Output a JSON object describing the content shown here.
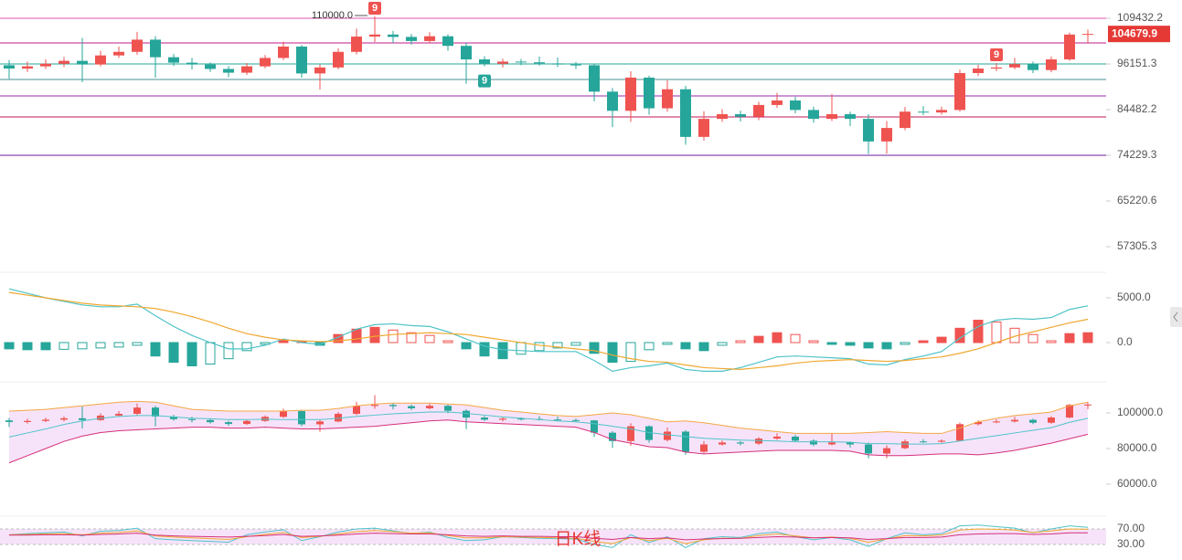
{
  "chart_data": [
    {
      "type": "candlestick",
      "candles": [
        [
          95800,
          97200,
          92200,
          94900
        ],
        [
          94900,
          96800,
          94000,
          95500
        ],
        [
          95500,
          97400,
          94800,
          96200
        ],
        [
          96200,
          98100,
          95300,
          97000
        ],
        [
          97000,
          103500,
          91300,
          96000
        ],
        [
          96000,
          99800,
          95500,
          98500
        ],
        [
          98500,
          101000,
          97800,
          99500
        ],
        [
          99500,
          105300,
          98700,
          103000
        ],
        [
          103000,
          104000,
          92500,
          98000
        ],
        [
          98000,
          98900,
          95600,
          96500
        ],
        [
          96500,
          97800,
          94700,
          96000
        ],
        [
          96000,
          96600,
          94000,
          94800
        ],
        [
          94800,
          95600,
          92600,
          93800
        ],
        [
          93800,
          96400,
          93200,
          95500
        ],
        [
          95500,
          98600,
          95000,
          97800
        ],
        [
          97800,
          102400,
          97200,
          101000
        ],
        [
          101000,
          101500,
          92500,
          93600
        ],
        [
          93600,
          96000,
          89400,
          95200
        ],
        [
          95200,
          100500,
          94700,
          99500
        ],
        [
          99500,
          106300,
          98800,
          103900
        ],
        [
          103900,
          110000,
          102300,
          104500
        ],
        [
          104500,
          105600,
          102000,
          103800
        ],
        [
          103800,
          104700,
          101600,
          102600
        ],
        [
          102600,
          105200,
          102000,
          104000
        ],
        [
          104000,
          104600,
          99800,
          101200
        ],
        [
          101200,
          102000,
          90900,
          97400
        ],
        [
          97400,
          98300,
          95500,
          96200
        ],
        [
          96200,
          97600,
          95200,
          96800
        ],
        [
          96800,
          97500,
          95800,
          96600
        ],
        [
          96600,
          98200,
          95700,
          96300
        ],
        [
          96300,
          97900,
          95300,
          96000
        ],
        [
          96000,
          96700,
          94800,
          95800
        ],
        [
          95800,
          96100,
          86500,
          88900
        ],
        [
          88900,
          89800,
          80400,
          84200
        ],
        [
          84200,
          94200,
          81600,
          92500
        ],
        [
          92500,
          93000,
          83300,
          84800
        ],
        [
          84800,
          91800,
          84000,
          89500
        ],
        [
          89500,
          90400,
          76500,
          78200
        ],
        [
          78200,
          84100,
          77400,
          82300
        ],
        [
          82300,
          84600,
          81600,
          83400
        ],
        [
          83400,
          84200,
          81700,
          82800
        ],
        [
          82800,
          86400,
          82000,
          85600
        ],
        [
          85600,
          88600,
          84900,
          86700
        ],
        [
          86700,
          87600,
          83600,
          84400
        ],
        [
          84400,
          85200,
          81400,
          82300
        ],
        [
          82300,
          88300,
          81800,
          83400
        ],
        [
          83400,
          84000,
          80600,
          82300
        ],
        [
          82300,
          83400,
          74500,
          77200
        ],
        [
          77200,
          81800,
          74600,
          80200
        ],
        [
          80200,
          85100,
          79700,
          84000
        ],
        [
          84000,
          85300,
          83200,
          83800
        ],
        [
          83800,
          85200,
          83300,
          84400
        ],
        [
          84400,
          94600,
          84000,
          93700
        ],
        [
          93700,
          95900,
          92900,
          94900
        ],
        [
          94900,
          96400,
          94200,
          95200
        ],
        [
          95200,
          97800,
          94700,
          96100
        ],
        [
          96100,
          96800,
          93700,
          94500
        ],
        [
          94500,
          98200,
          93900,
          97400
        ],
        [
          97400,
          105100,
          97000,
          104500
        ],
        [
          104500,
          106000,
          102100,
          104679.9
        ]
      ],
      "log": true,
      "ylim": [
        54416,
        115244
      ],
      "yticks": [
        109432.2,
        96151.3,
        84482.2,
        74229.3,
        65220.6,
        57305.3
      ],
      "up_color": "#ef5350",
      "down_color": "#26a69a",
      "levels": [
        {
          "value": 109432.2,
          "color": "#e255b0"
        },
        {
          "value": 102053,
          "color": "#c2188c"
        },
        {
          "value": 96151.3,
          "color": "#26a69a"
        },
        {
          "value": 92020,
          "color": "#4a8f94"
        },
        {
          "value": 87840,
          "color": "#9c27b0"
        },
        {
          "value": 82764,
          "color": "#c2185b"
        },
        {
          "value": 74229.3,
          "color": "#6a1b9a"
        }
      ],
      "max_annotation": {
        "value": 110000,
        "label": "110000.0"
      },
      "td_sell": [
        null,
        null,
        null,
        null,
        null,
        null,
        null,
        null,
        null,
        null,
        null,
        null,
        null,
        null,
        null,
        null,
        null,
        null,
        null,
        null,
        "9",
        null,
        null,
        null,
        null,
        null,
        null,
        null,
        null,
        null,
        null,
        null,
        null,
        null,
        null,
        null,
        null,
        null,
        null,
        null,
        null,
        null,
        null,
        null,
        null,
        null,
        null,
        null,
        null,
        null,
        null,
        null,
        null,
        null,
        "9",
        null,
        null,
        null,
        null,
        null
      ],
      "td_buy": [
        null,
        null,
        null,
        null,
        null,
        null,
        null,
        null,
        null,
        null,
        null,
        null,
        null,
        null,
        null,
        null,
        null,
        null,
        null,
        null,
        null,
        null,
        null,
        null,
        null,
        null,
        "9",
        null,
        null,
        null,
        null,
        null,
        null,
        null,
        null,
        null,
        null,
        null,
        null,
        null,
        null,
        null,
        null,
        null,
        null,
        null,
        null,
        null,
        null,
        null,
        null,
        null,
        null,
        null,
        null,
        null,
        null,
        null,
        null,
        null
      ]
    },
    {
      "type": "macd",
      "hist": [
        -700,
        -800,
        -800,
        -750,
        -700,
        -600,
        -500,
        -300,
        -1500,
        -2200,
        -2600,
        -2400,
        -1800,
        -900,
        -200,
        300,
        100,
        -300,
        900,
        1500,
        1700,
        1400,
        1100,
        800,
        200,
        -700,
        -1500,
        -1800,
        -1300,
        -900,
        -600,
        -300,
        -1200,
        -2200,
        -2100,
        -800,
        -200,
        -700,
        -900,
        -300,
        200,
        700,
        1100,
        900,
        200,
        -200,
        -300,
        -600,
        -700,
        -200,
        200,
        600,
        1600,
        2500,
        2300,
        1600,
        900,
        200,
        1000,
        1100
      ],
      "dif": [
        6000,
        5500,
        5000,
        4600,
        4200,
        4000,
        4000,
        4300,
        3000,
        1800,
        800,
        0,
        -700,
        -700,
        -300,
        400,
        0,
        -200,
        600,
        1500,
        2000,
        2100,
        1900,
        1800,
        1200,
        400,
        -400,
        -800,
        -900,
        -1000,
        -1000,
        -1000,
        -2000,
        -3200,
        -2800,
        -2600,
        -2300,
        -3000,
        -3200,
        -3200,
        -2800,
        -2200,
        -1600,
        -1500,
        -1600,
        -1700,
        -1800,
        -2400,
        -2500,
        -1900,
        -1500,
        -1000,
        500,
        1800,
        2500,
        2700,
        2600,
        2800,
        3700,
        4100
      ],
      "dea": [
        5600,
        5300,
        5000,
        4700,
        4400,
        4200,
        4100,
        4000,
        3800,
        3400,
        2900,
        2300,
        1600,
        1000,
        600,
        300,
        200,
        100,
        200,
        400,
        700,
        900,
        1000,
        1100,
        1000,
        900,
        600,
        300,
        0,
        -300,
        -500,
        -700,
        -900,
        -1400,
        -1800,
        -2100,
        -2200,
        -2500,
        -2800,
        -2900,
        -3000,
        -2800,
        -2600,
        -2300,
        -2100,
        -2000,
        -1900,
        -2000,
        -2100,
        -2000,
        -1800,
        -1600,
        -1200,
        -700,
        0,
        700,
        1200,
        1700,
        2200,
        2600
      ],
      "ylim": [
        -4082,
        7143
      ],
      "yticks": [
        {
          "value": 5000,
          "label": "5000.0"
        },
        {
          "value": 0,
          "label": "0.0"
        }
      ],
      "up_color": "#ef5350",
      "down_color": "#26a69a",
      "dif_color": "#4fc3c8",
      "dea_color": "#f0a830"
    },
    {
      "type": "boll",
      "upper": [
        101000,
        101500,
        102000,
        103000,
        104000,
        105000,
        106000,
        106500,
        106000,
        104000,
        102000,
        101500,
        101000,
        101000,
        101000,
        101000,
        101500,
        101500,
        102500,
        104000,
        105000,
        105500,
        105500,
        105500,
        105000,
        104500,
        103000,
        101500,
        100500,
        99500,
        98500,
        98000,
        99000,
        100000,
        99000,
        97000,
        95000,
        95500,
        94500,
        93000,
        91500,
        90500,
        89500,
        88500,
        88500,
        88500,
        88500,
        89000,
        89500,
        89000,
        88500,
        88500,
        91500,
        95000,
        97000,
        98500,
        99500,
        100500,
        104000,
        106000
      ],
      "mid": [
        86500,
        88750,
        91000,
        93500,
        95500,
        97000,
        98000,
        98500,
        98500,
        97750,
        97000,
        96750,
        96250,
        96250,
        96500,
        96250,
        96250,
        96250,
        97000,
        98000,
        98750,
        99500,
        100000,
        100500,
        100500,
        99750,
        98750,
        97750,
        97000,
        96250,
        95500,
        95000,
        94000,
        92500,
        91000,
        89000,
        87750,
        86750,
        85750,
        85250,
        84750,
        84500,
        84250,
        83750,
        83750,
        83750,
        83500,
        82750,
        82750,
        82500,
        82500,
        82750,
        84250,
        85750,
        87250,
        88750,
        90250,
        91750,
        94750,
        97000
      ],
      "lower": [
        72000,
        76000,
        80000,
        84000,
        87000,
        89000,
        90000,
        90500,
        91000,
        91500,
        92000,
        92000,
        91500,
        91500,
        92000,
        91500,
        91000,
        91000,
        91500,
        92000,
        92500,
        93500,
        94500,
        95500,
        96000,
        95000,
        94500,
        94000,
        93500,
        93000,
        92500,
        92000,
        89000,
        85000,
        83000,
        81000,
        80500,
        78000,
        77000,
        77500,
        78000,
        78500,
        79000,
        79000,
        79000,
        79000,
        78500,
        76500,
        76000,
        76000,
        76500,
        77000,
        77000,
        76500,
        77500,
        79000,
        81000,
        83000,
        85500,
        88000
      ],
      "ylim": [
        44615,
        108718
      ],
      "yticks": [
        {
          "value": 100000,
          "label": "100000.0"
        },
        {
          "value": 80000,
          "label": "80000.0"
        },
        {
          "value": 60000,
          "label": "60000.0"
        }
      ],
      "upper_color": "#f5a742",
      "mid_color": "#4fc3c8",
      "lower_color": "#d6307a",
      "fill": "#f6e3fa"
    },
    {
      "type": "rsi",
      "lines": [
        {
          "color": "#4fc3c8",
          "values": [
            55,
            58,
            60,
            62,
            52,
            64,
            66,
            72,
            45,
            42,
            40,
            38,
            36,
            55,
            62,
            68,
            40,
            50,
            62,
            70,
            72,
            65,
            58,
            62,
            48,
            40,
            42,
            50,
            48,
            46,
            45,
            44,
            30,
            22,
            55,
            35,
            50,
            22,
            45,
            50,
            48,
            58,
            62,
            50,
            42,
            48,
            42,
            25,
            45,
            60,
            55,
            58,
            78,
            80,
            76,
            72,
            60,
            70,
            78,
            74
          ]
        },
        {
          "color": "#f0a830",
          "values": [
            55,
            56,
            57,
            58,
            55,
            59,
            61,
            65,
            52,
            49,
            47,
            45,
            43,
            50,
            56,
            61,
            48,
            51,
            57,
            63,
            66,
            63,
            59,
            60,
            53,
            47,
            47,
            50,
            49,
            48,
            47,
            46,
            38,
            32,
            48,
            40,
            46,
            32,
            42,
            46,
            46,
            53,
            57,
            52,
            47,
            49,
            46,
            36,
            44,
            53,
            52,
            54,
            67,
            70,
            69,
            67,
            61,
            65,
            70,
            69
          ]
        },
        {
          "color": "#d6307a",
          "values": [
            54,
            54,
            55,
            55,
            54,
            56,
            57,
            59,
            54,
            52,
            51,
            50,
            49,
            51,
            53,
            56,
            51,
            52,
            54,
            57,
            59,
            58,
            57,
            57,
            55,
            52,
            51,
            52,
            51,
            51,
            50,
            50,
            46,
            43,
            48,
            45,
            47,
            42,
            44,
            45,
            46,
            48,
            50,
            49,
            47,
            48,
            47,
            43,
            45,
            48,
            48,
            49,
            55,
            57,
            58,
            58,
            56,
            57,
            60,
            60
          ]
        }
      ],
      "ylim": [
        8.8,
        91.2
      ],
      "yticks": [
        {
          "value": 70,
          "label": "70.00"
        },
        {
          "value": 30,
          "label": "30.00"
        }
      ],
      "band_fill": "#f6e3fa",
      "label": "日K线"
    }
  ]
}
